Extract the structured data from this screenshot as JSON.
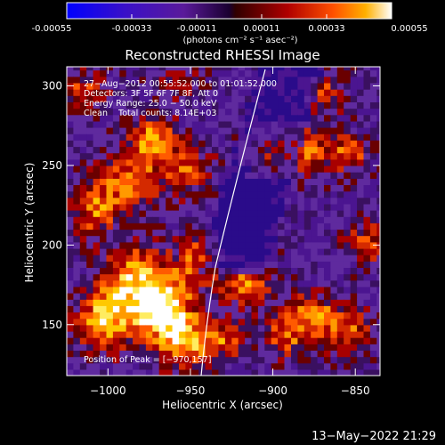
{
  "colorbar": {
    "ticks": [
      "-0.00055",
      "-0.00033",
      "-0.00011",
      "0.00011",
      "0.00033",
      "0.00055"
    ],
    "unit_label": "(photons cm⁻² s⁻¹ asec⁻²)",
    "range": [
      -0.00055,
      0.00055
    ]
  },
  "chart_data": {
    "type": "heatmap",
    "title": "Reconstructed RHESSI Image",
    "xlabel": "Heliocentric X (arcsec)",
    "ylabel": "Heliocentric Y (arcsec)",
    "xlim": [
      -1025,
      -835
    ],
    "ylim": [
      118,
      312
    ],
    "xticks": [
      -1000,
      -950,
      -900,
      -850
    ],
    "xtick_labels": [
      "−1000",
      "−950",
      "−900",
      "−850"
    ],
    "yticks": [
      150,
      200,
      250,
      300
    ],
    "ytick_labels": [
      "150",
      "200",
      "250",
      "300"
    ],
    "colormap": "rhessi-blue-purple-red-yellow-white",
    "peak": [
      -970,
      157
    ],
    "annotations": [
      "27−Aug−2012 00:55:52.000 to 01:01:52.000",
      "Detectors: 3F 5F 6F 7F 8F, Att 0",
      "Energy Range: 25.0 − 50.0 keV",
      "Clean    Total counts: 8.14E+03"
    ],
    "peak_label": "Position of Peak = [−970,157]"
  },
  "timestamp": "13−May−2022 21:29"
}
